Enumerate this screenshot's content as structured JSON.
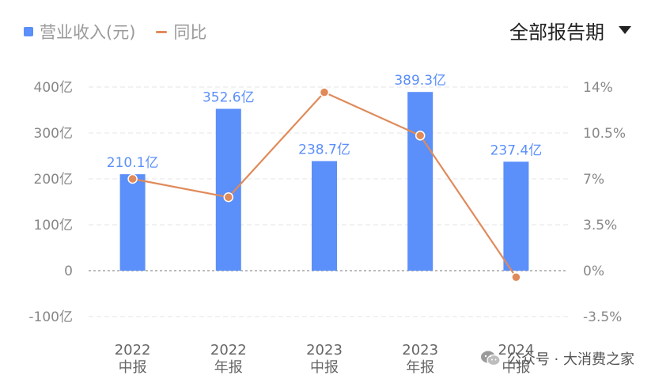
{
  "legend": {
    "revenue_label": "营业收入(元)",
    "yoy_label": "同比"
  },
  "period_selector": {
    "label": "全部报告期",
    "icon": "triangle-down-icon"
  },
  "watermark": {
    "icon": "wechat-icon",
    "text": "公众号 · 大消费之家"
  },
  "colors": {
    "bar": "#5b8ff9",
    "line": "#e08a5a",
    "data_label": "#5b8ff9",
    "axis_text": "#888888",
    "grid": "#e6e6e6"
  },
  "chart_data": {
    "type": "bar+line",
    "categories": [
      {
        "year": "2022",
        "period": "中报"
      },
      {
        "year": "2022",
        "period": "年报"
      },
      {
        "year": "2023",
        "period": "中报"
      },
      {
        "year": "2023",
        "period": "年报"
      },
      {
        "year": "2024",
        "period": "中报"
      }
    ],
    "series": [
      {
        "name": "营业收入(元)",
        "type": "bar",
        "axis": "left",
        "values": [
          210.1,
          352.6,
          238.7,
          389.3,
          237.4
        ],
        "data_labels": [
          "210.1亿",
          "352.6亿",
          "238.7亿",
          "389.3亿",
          "237.4亿"
        ]
      },
      {
        "name": "同比",
        "type": "line",
        "axis": "right",
        "values": [
          7.0,
          5.6,
          13.6,
          10.3,
          -0.5
        ]
      }
    ],
    "left_axis": {
      "range": [
        -100,
        400
      ],
      "ticks": [
        400,
        300,
        200,
        100,
        0,
        -100
      ],
      "tick_labels": [
        "400亿",
        "300亿",
        "200亿",
        "100亿",
        "0",
        "-100亿"
      ]
    },
    "right_axis": {
      "range": [
        -3.5,
        14
      ],
      "ticks": [
        14,
        10.5,
        7,
        3.5,
        0,
        -3.5
      ],
      "tick_labels": [
        "14%",
        "10.5%",
        "7%",
        "3.5%",
        "0%",
        "-3.5%"
      ]
    },
    "grid": true,
    "zero_line": "dashed",
    "legend_position": "top-left"
  }
}
